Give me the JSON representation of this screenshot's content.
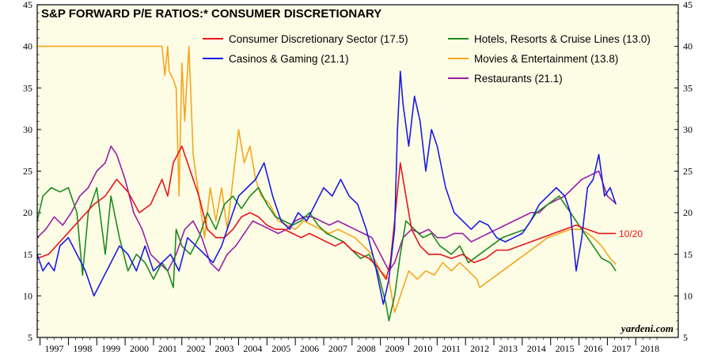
{
  "chart_data": {
    "type": "line",
    "title": "S&P FORWARD P/E RATIOS:* CONSUMER DISCRETIONARY",
    "source": "yardeni.com",
    "end_label": "10/20",
    "ylim": [
      5,
      45
    ],
    "y_ticks": [
      5,
      10,
      15,
      20,
      25,
      30,
      35,
      40,
      45
    ],
    "x_range": [
      1996.4,
      2019.0
    ],
    "x_categories": [
      "1997",
      "1998",
      "1999",
      "2000",
      "2001",
      "2002",
      "2003",
      "2004",
      "2005",
      "2006",
      "2007",
      "2008",
      "2009",
      "2010",
      "2011",
      "2012",
      "2013",
      "2014",
      "2015",
      "2016",
      "2017",
      "2018"
    ],
    "colors": {
      "background": "#fdfde6",
      "red": "#e8141b",
      "green": "#1e8a1e",
      "blue": "#1a1ae6",
      "orange": "#f7a51c",
      "purple": "#9a1ea6"
    },
    "series": [
      {
        "name": "Consumer Discretionary Sector (17.5)",
        "color": "#e8141b",
        "x": [
          1996.4,
          1996.8,
          1997.2,
          1997.6,
          1998.0,
          1998.4,
          1998.8,
          1999.2,
          1999.6,
          2000.0,
          2000.4,
          2000.8,
          2001.0,
          2001.2,
          2001.5,
          2001.8,
          2002.1,
          2002.4,
          2002.7,
          2003.0,
          2003.3,
          2003.6,
          2003.9,
          2004.2,
          2004.5,
          2004.8,
          2005.1,
          2005.4,
          2005.7,
          2006.0,
          2006.3,
          2006.6,
          2006.9,
          2007.2,
          2007.5,
          2007.8,
          2008.1,
          2008.4,
          2008.7,
          2008.85,
          2009.0,
          2009.2,
          2009.4,
          2009.6,
          2009.9,
          2010.2,
          2010.6,
          2011.0,
          2011.4,
          2011.8,
          2012.2,
          2012.6,
          2013.0,
          2013.4,
          2013.8,
          2014.2,
          2014.6,
          2015.0,
          2015.4,
          2015.8,
          2016.2,
          2016.6,
          2016.8
        ],
        "values": [
          14.5,
          15,
          16.5,
          18,
          19.5,
          21,
          22,
          24,
          22.5,
          20,
          21,
          24,
          22,
          26,
          28,
          25,
          22,
          18,
          17,
          17,
          18,
          19.5,
          20,
          19.5,
          18.5,
          18,
          18,
          17.5,
          17,
          17.5,
          17,
          16.5,
          16,
          16.5,
          15.5,
          15,
          14.5,
          13.5,
          12,
          14,
          19,
          26,
          22,
          18,
          16,
          15,
          15,
          14.5,
          15,
          14,
          14.5,
          15.5,
          15.5,
          16,
          16.5,
          17,
          17.5,
          18,
          18.5,
          18,
          17.5,
          17.5,
          17.5
        ]
      },
      {
        "name": "Hotels, Resorts & Cruise Lines (13.0)",
        "color": "#1e8a1e",
        "x": [
          1996.4,
          1996.6,
          1996.9,
          1997.2,
          1997.5,
          1997.8,
          1998.0,
          1998.2,
          1998.5,
          1998.8,
          1999.0,
          1999.3,
          1999.6,
          1999.9,
          2000.2,
          2000.5,
          2000.8,
          2001.0,
          2001.2,
          2001.3,
          2001.5,
          2001.8,
          2002.1,
          2002.4,
          2002.7,
          2003.0,
          2003.3,
          2003.6,
          2003.9,
          2004.2,
          2004.5,
          2004.8,
          2005.1,
          2005.4,
          2005.7,
          2006.0,
          2006.3,
          2006.6,
          2006.9,
          2007.2,
          2007.5,
          2007.8,
          2008.1,
          2008.4,
          2008.7,
          2008.8,
          2009.0,
          2009.2,
          2009.4,
          2009.7,
          2010.0,
          2010.3,
          2010.6,
          2011.0,
          2011.3,
          2011.6,
          2012.0,
          2012.4,
          2012.8,
          2013.2,
          2013.6,
          2014.0,
          2014.4,
          2014.8,
          2015.0,
          2015.3,
          2015.6,
          2016.0,
          2016.3,
          2016.6,
          2016.8
        ],
        "values": [
          19,
          22,
          23,
          22.5,
          23,
          20,
          12.5,
          20,
          23,
          15,
          22,
          17,
          13,
          15,
          14,
          12,
          14,
          13,
          11,
          18,
          16,
          15,
          17,
          20,
          18,
          21,
          22,
          20.5,
          22,
          23,
          21,
          19.5,
          19,
          18.5,
          19,
          20,
          18.5,
          17.5,
          17,
          16.5,
          15.5,
          14.5,
          15,
          13,
          9,
          7,
          10,
          15,
          19,
          18,
          17,
          17.5,
          16,
          15,
          16,
          14,
          15,
          16,
          17,
          17.5,
          18,
          20,
          21,
          22,
          21,
          19.5,
          18,
          16,
          14.5,
          14,
          13
        ]
      },
      {
        "name": "Casinos & Gaming (21.1)",
        "color": "#1a1ae6",
        "x": [
          1996.4,
          1996.6,
          1996.8,
          1997.0,
          1997.2,
          1997.5,
          1997.8,
          1998.1,
          1998.4,
          1998.7,
          1999.0,
          1999.3,
          1999.6,
          1999.9,
          2000.2,
          2000.5,
          2000.8,
          2001.1,
          2001.4,
          2001.7,
          2002.0,
          2002.3,
          2002.6,
          2002.9,
          2003.2,
          2003.5,
          2003.8,
          2004.1,
          2004.4,
          2004.7,
          2005.0,
          2005.3,
          2005.6,
          2005.9,
          2006.2,
          2006.5,
          2006.8,
          2007.1,
          2007.4,
          2007.7,
          2008.0,
          2008.3,
          2008.6,
          2008.8,
          2009.0,
          2009.1,
          2009.2,
          2009.3,
          2009.5,
          2009.7,
          2009.9,
          2010.1,
          2010.3,
          2010.5,
          2010.8,
          2011.1,
          2011.4,
          2011.7,
          2012.0,
          2012.3,
          2012.6,
          2012.9,
          2013.2,
          2013.5,
          2013.8,
          2014.1,
          2014.4,
          2014.7,
          2015.0,
          2015.2,
          2015.4,
          2015.6,
          2015.8,
          2016.0,
          2016.2,
          2016.4,
          2016.6,
          2016.8
        ],
        "values": [
          15,
          13,
          14,
          13,
          16,
          17,
          15,
          13,
          10,
          12,
          14,
          16,
          15,
          13,
          16,
          13,
          14,
          15,
          13,
          17,
          16,
          15,
          14,
          16,
          19,
          22,
          23,
          24,
          26,
          22,
          19,
          18,
          20,
          19,
          21,
          23,
          22,
          24,
          22,
          21,
          18,
          14,
          9,
          12,
          18,
          30,
          37,
          33,
          28,
          34,
          31,
          25,
          30,
          28,
          23,
          20,
          19,
          18,
          19,
          18.5,
          17,
          16.5,
          17,
          17.5,
          19,
          21,
          22,
          23,
          22,
          20,
          13,
          17,
          23,
          24,
          27,
          22,
          23,
          21
        ]
      },
      {
        "name": "Movies & Entertainment (13.8)",
        "color": "#f7a51c",
        "x": [
          1996.4,
          1997.0,
          1998.0,
          1999.0,
          2000.0,
          2000.8,
          2000.9,
          2001.0,
          2001.05,
          2001.2,
          2001.3,
          2001.4,
          2001.5,
          2001.6,
          2001.75,
          2001.9,
          2002.1,
          2002.3,
          2002.5,
          2002.7,
          2002.9,
          2003.1,
          2003.3,
          2003.5,
          2003.7,
          2003.9,
          2004.1,
          2004.3,
          2004.6,
          2004.9,
          2005.2,
          2005.5,
          2005.8,
          2006.1,
          2006.4,
          2006.7,
          2007.0,
          2007.3,
          2007.6,
          2007.9,
          2008.2,
          2008.5,
          2008.8,
          2009.0,
          2009.2,
          2009.5,
          2009.8,
          2010.1,
          2010.4,
          2010.7,
          2011.0,
          2011.3,
          2011.6,
          2011.9,
          2012.0,
          2012.4,
          2012.8,
          2013.2,
          2013.6,
          2014.0,
          2014.4,
          2014.8,
          2015.2,
          2015.6,
          2016.0,
          2016.3,
          2016.6,
          2016.8
        ],
        "values": [
          40,
          40,
          40,
          40,
          40,
          40,
          36.5,
          40,
          37,
          36,
          35,
          22,
          38,
          31,
          40,
          27,
          22,
          17,
          23,
          19,
          23,
          18,
          24,
          30,
          26,
          28,
          24,
          22,
          21,
          19,
          18.5,
          18,
          19,
          18.5,
          18,
          17.5,
          18,
          17.5,
          17,
          16,
          15,
          13,
          12,
          8,
          10,
          13,
          12,
          13,
          12.5,
          14,
          13,
          14,
          13,
          12,
          11,
          12,
          13,
          14,
          15,
          16,
          17,
          17.5,
          18,
          18,
          17,
          16,
          14.5,
          13.8
        ]
      },
      {
        "name": "Restaurants (21.1)",
        "color": "#9a1ea6",
        "x": [
          1996.4,
          1996.7,
          1997.0,
          1997.3,
          1997.6,
          1997.9,
          1998.2,
          1998.5,
          1998.8,
          1999.0,
          1999.2,
          1999.5,
          1999.8,
          2000.1,
          2000.4,
          2000.7,
          2001.0,
          2001.3,
          2001.6,
          2001.9,
          2002.2,
          2002.5,
          2002.8,
          2003.1,
          2003.4,
          2003.7,
          2004.0,
          2004.3,
          2004.6,
          2004.9,
          2005.2,
          2005.5,
          2005.8,
          2006.1,
          2006.4,
          2006.7,
          2007.0,
          2007.3,
          2007.6,
          2007.9,
          2008.2,
          2008.5,
          2008.8,
          2009.0,
          2009.3,
          2009.6,
          2009.9,
          2010.2,
          2010.5,
          2010.8,
          2011.1,
          2011.4,
          2011.7,
          2012.0,
          2012.3,
          2012.6,
          2012.9,
          2013.2,
          2013.5,
          2013.8,
          2014.1,
          2014.4,
          2014.7,
          2015.0,
          2015.3,
          2015.6,
          2015.9,
          2016.2,
          2016.5,
          2016.8
        ],
        "values": [
          17,
          18,
          19.5,
          18.5,
          20,
          22,
          23,
          25,
          26,
          28,
          27,
          24,
          20,
          18,
          15,
          14,
          13,
          15,
          18,
          19,
          17,
          14,
          13,
          15,
          16,
          17.5,
          19,
          18.5,
          18,
          17.5,
          18,
          19,
          19.5,
          19.5,
          19,
          18.5,
          19,
          18.5,
          18,
          17.5,
          17,
          15,
          13,
          14,
          17,
          18,
          17.5,
          18,
          17,
          17,
          17.5,
          17.5,
          16.5,
          17,
          17.5,
          18,
          18.5,
          19,
          19.5,
          20,
          20,
          21,
          21.5,
          22,
          23,
          24,
          24.5,
          25,
          22,
          21.1
        ]
      }
    ]
  }
}
